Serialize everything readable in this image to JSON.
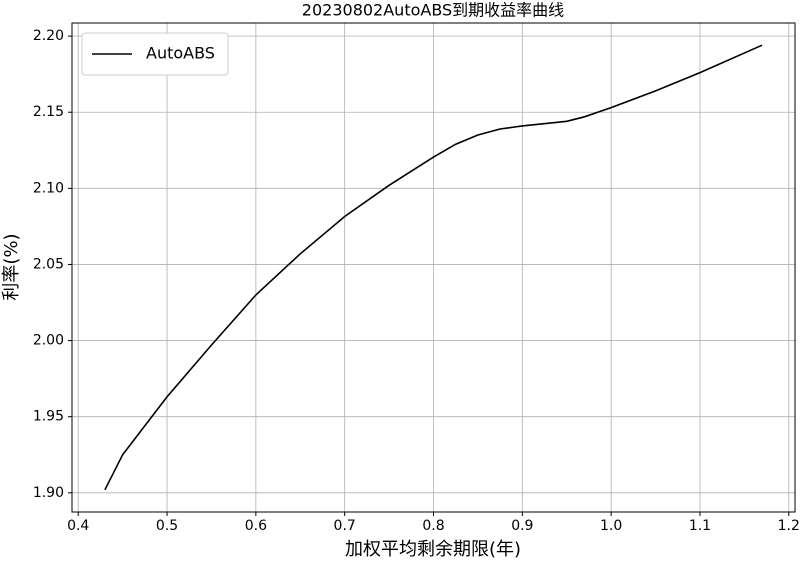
{
  "chart_data": {
    "type": "line",
    "title": "20230802AutoABS到期收益率曲线",
    "x_label": "加权平均剩余期限(年)",
    "y_label": "利率(%)",
    "x": [
      0.43,
      0.45,
      0.5,
      0.55,
      0.6,
      0.65,
      0.7,
      0.75,
      0.8,
      0.825,
      0.85,
      0.875,
      0.9,
      0.95,
      0.97,
      1.0,
      1.05,
      1.1,
      1.17
    ],
    "series": [
      {
        "name": "AutoABS",
        "color": "#000000",
        "values": [
          1.902,
          1.925,
          1.963,
          1.997,
          2.03,
          2.057,
          2.0815,
          2.102,
          2.1205,
          2.129,
          2.135,
          2.139,
          2.141,
          2.144,
          2.147,
          2.153,
          2.164,
          2.176,
          2.194
        ]
      }
    ],
    "xlim": [
      0.393,
      1.207
    ],
    "ylim": [
      1.8874,
      2.2086
    ],
    "xticks": [
      0.4,
      0.5,
      0.6,
      0.7,
      0.8,
      0.9,
      {
        "value": 1,
        "label": "1.0"
      },
      1.1,
      1.2
    ],
    "yticks": [
      {
        "value": 1.9,
        "label": "1.90"
      },
      1.95,
      {
        "value": 2,
        "label": "2.00"
      },
      2.05,
      {
        "value": 2.1,
        "label": "2.10"
      },
      2.15,
      {
        "value": 2.2,
        "label": "2.20"
      }
    ],
    "grid": true,
    "legend": "upper left"
  }
}
